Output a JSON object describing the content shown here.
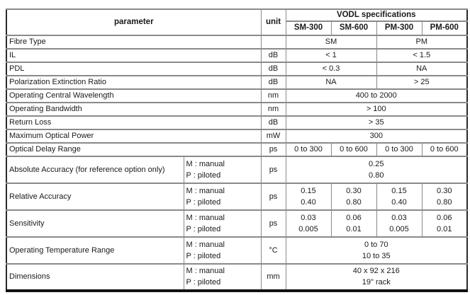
{
  "table": {
    "header": {
      "parameter_label": "parameter",
      "unit_label": "unit",
      "group_label": "VODL specifications",
      "models": [
        "SM-300",
        "SM-600",
        "PM-300",
        "PM-600"
      ]
    },
    "rows": [
      {
        "param": "Fibre Type",
        "mode": null,
        "unit": "",
        "tall": false,
        "values": [
          {
            "span": 2,
            "lines": [
              "SM"
            ]
          },
          {
            "span": 2,
            "lines": [
              "PM"
            ]
          }
        ]
      },
      {
        "param": "IL",
        "mode": null,
        "unit": "dB",
        "tall": false,
        "values": [
          {
            "span": 2,
            "lines": [
              "< 1"
            ]
          },
          {
            "span": 2,
            "lines": [
              "< 1.5"
            ]
          }
        ]
      },
      {
        "param": "PDL",
        "mode": null,
        "unit": "dB",
        "tall": false,
        "values": [
          {
            "span": 2,
            "lines": [
              "< 0.3"
            ]
          },
          {
            "span": 2,
            "lines": [
              "NA"
            ]
          }
        ]
      },
      {
        "param": "Polarization Extinction Ratio",
        "mode": null,
        "unit": "dB",
        "tall": false,
        "values": [
          {
            "span": 2,
            "lines": [
              "NA"
            ]
          },
          {
            "span": 2,
            "lines": [
              "> 25"
            ]
          }
        ]
      },
      {
        "param": "Operating Central Wavelength",
        "mode": null,
        "unit": "nm",
        "tall": false,
        "values": [
          {
            "span": 4,
            "lines": [
              "400 to 2000"
            ]
          }
        ]
      },
      {
        "param": "Operating Bandwidth",
        "mode": null,
        "unit": "nm",
        "tall": false,
        "values": [
          {
            "span": 4,
            "lines": [
              "> 100"
            ]
          }
        ]
      },
      {
        "param": "Return Loss",
        "mode": null,
        "unit": "dB",
        "tall": false,
        "values": [
          {
            "span": 4,
            "lines": [
              "> 35"
            ]
          }
        ]
      },
      {
        "param": "Maximum Optical Power",
        "mode": null,
        "unit": "mW",
        "tall": false,
        "values": [
          {
            "span": 4,
            "lines": [
              "300"
            ]
          }
        ]
      },
      {
        "param": "Optical Delay Range",
        "mode": null,
        "unit": "ps",
        "tall": false,
        "values": [
          {
            "span": 1,
            "lines": [
              "0 to 300"
            ]
          },
          {
            "span": 1,
            "lines": [
              "0 to 600"
            ]
          },
          {
            "span": 1,
            "lines": [
              "0 to 300"
            ]
          },
          {
            "span": 1,
            "lines": [
              "0 to 600"
            ]
          }
        ]
      },
      {
        "param": "Absolute Accuracy (for reference option only)",
        "mode": [
          "M : manual",
          "P : piloted"
        ],
        "unit": "ps",
        "tall": true,
        "values": [
          {
            "span": 4,
            "lines": [
              "0.25",
              "0.80"
            ]
          }
        ]
      },
      {
        "param": "Relative Accuracy",
        "mode": [
          "M : manual",
          "P : piloted"
        ],
        "unit": "ps",
        "tall": true,
        "values": [
          {
            "span": 1,
            "lines": [
              "0.15",
              "0.40"
            ]
          },
          {
            "span": 1,
            "lines": [
              "0.30",
              "0.80"
            ]
          },
          {
            "span": 1,
            "lines": [
              "0.15",
              "0.40"
            ]
          },
          {
            "span": 1,
            "lines": [
              "0.30",
              "0.80"
            ]
          }
        ]
      },
      {
        "param": "Sensitivity",
        "mode": [
          "M : manual",
          "P : piloted"
        ],
        "unit": "ps",
        "tall": true,
        "values": [
          {
            "span": 1,
            "lines": [
              "0.03",
              "0.005"
            ]
          },
          {
            "span": 1,
            "lines": [
              "0.06",
              "0.01"
            ]
          },
          {
            "span": 1,
            "lines": [
              "0.03",
              "0.005"
            ]
          },
          {
            "span": 1,
            "lines": [
              "0.06",
              "0.01"
            ]
          }
        ]
      },
      {
        "param": "Operating Temperature Range",
        "mode": [
          "M : manual",
          "P : piloted"
        ],
        "unit": "°C",
        "tall": true,
        "values": [
          {
            "span": 4,
            "lines": [
              "0 to 70",
              "10 to 35"
            ]
          }
        ]
      },
      {
        "param": "Dimensions",
        "mode": [
          "M : manual",
          "P : piloted"
        ],
        "unit": "mm",
        "tall": true,
        "values": [
          {
            "span": 4,
            "lines": [
              "40 x 92 x 216",
              "19\" rack"
            ]
          }
        ]
      }
    ]
  }
}
